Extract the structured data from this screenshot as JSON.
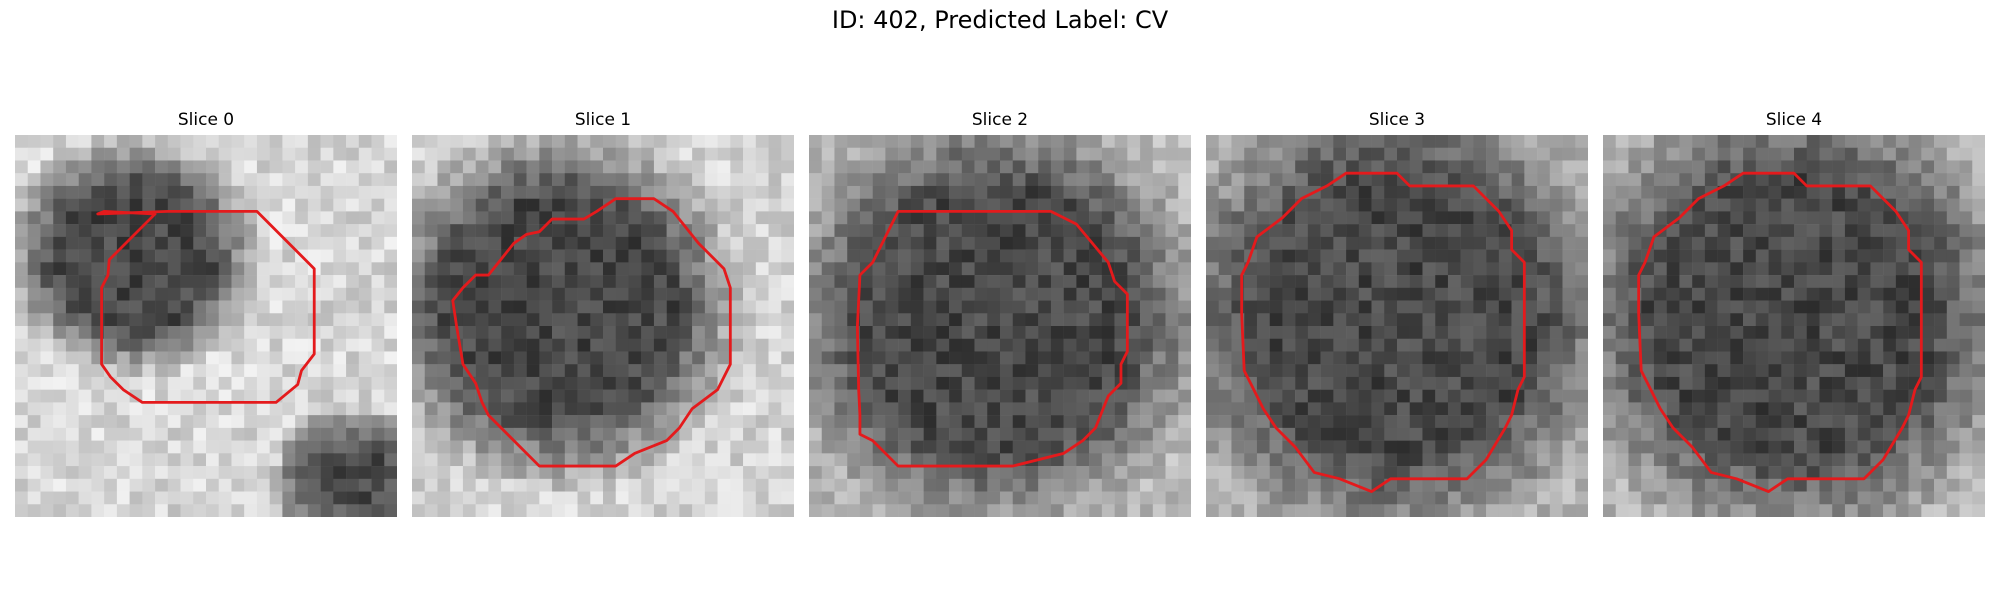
{
  "title": "ID: 402, Predicted Label: CV",
  "overlay_color": "#e41a1c",
  "colormap": "gray",
  "panels": [
    {
      "title": "Slice 0",
      "icon": "ct-slice-image"
    },
    {
      "title": "Slice 1",
      "icon": "ct-slice-image"
    },
    {
      "title": "Slice 2",
      "icon": "ct-slice-image"
    },
    {
      "title": "Slice 3",
      "icon": "ct-slice-image"
    },
    {
      "title": "Slice 4",
      "icon": "ct-slice-image"
    }
  ]
}
